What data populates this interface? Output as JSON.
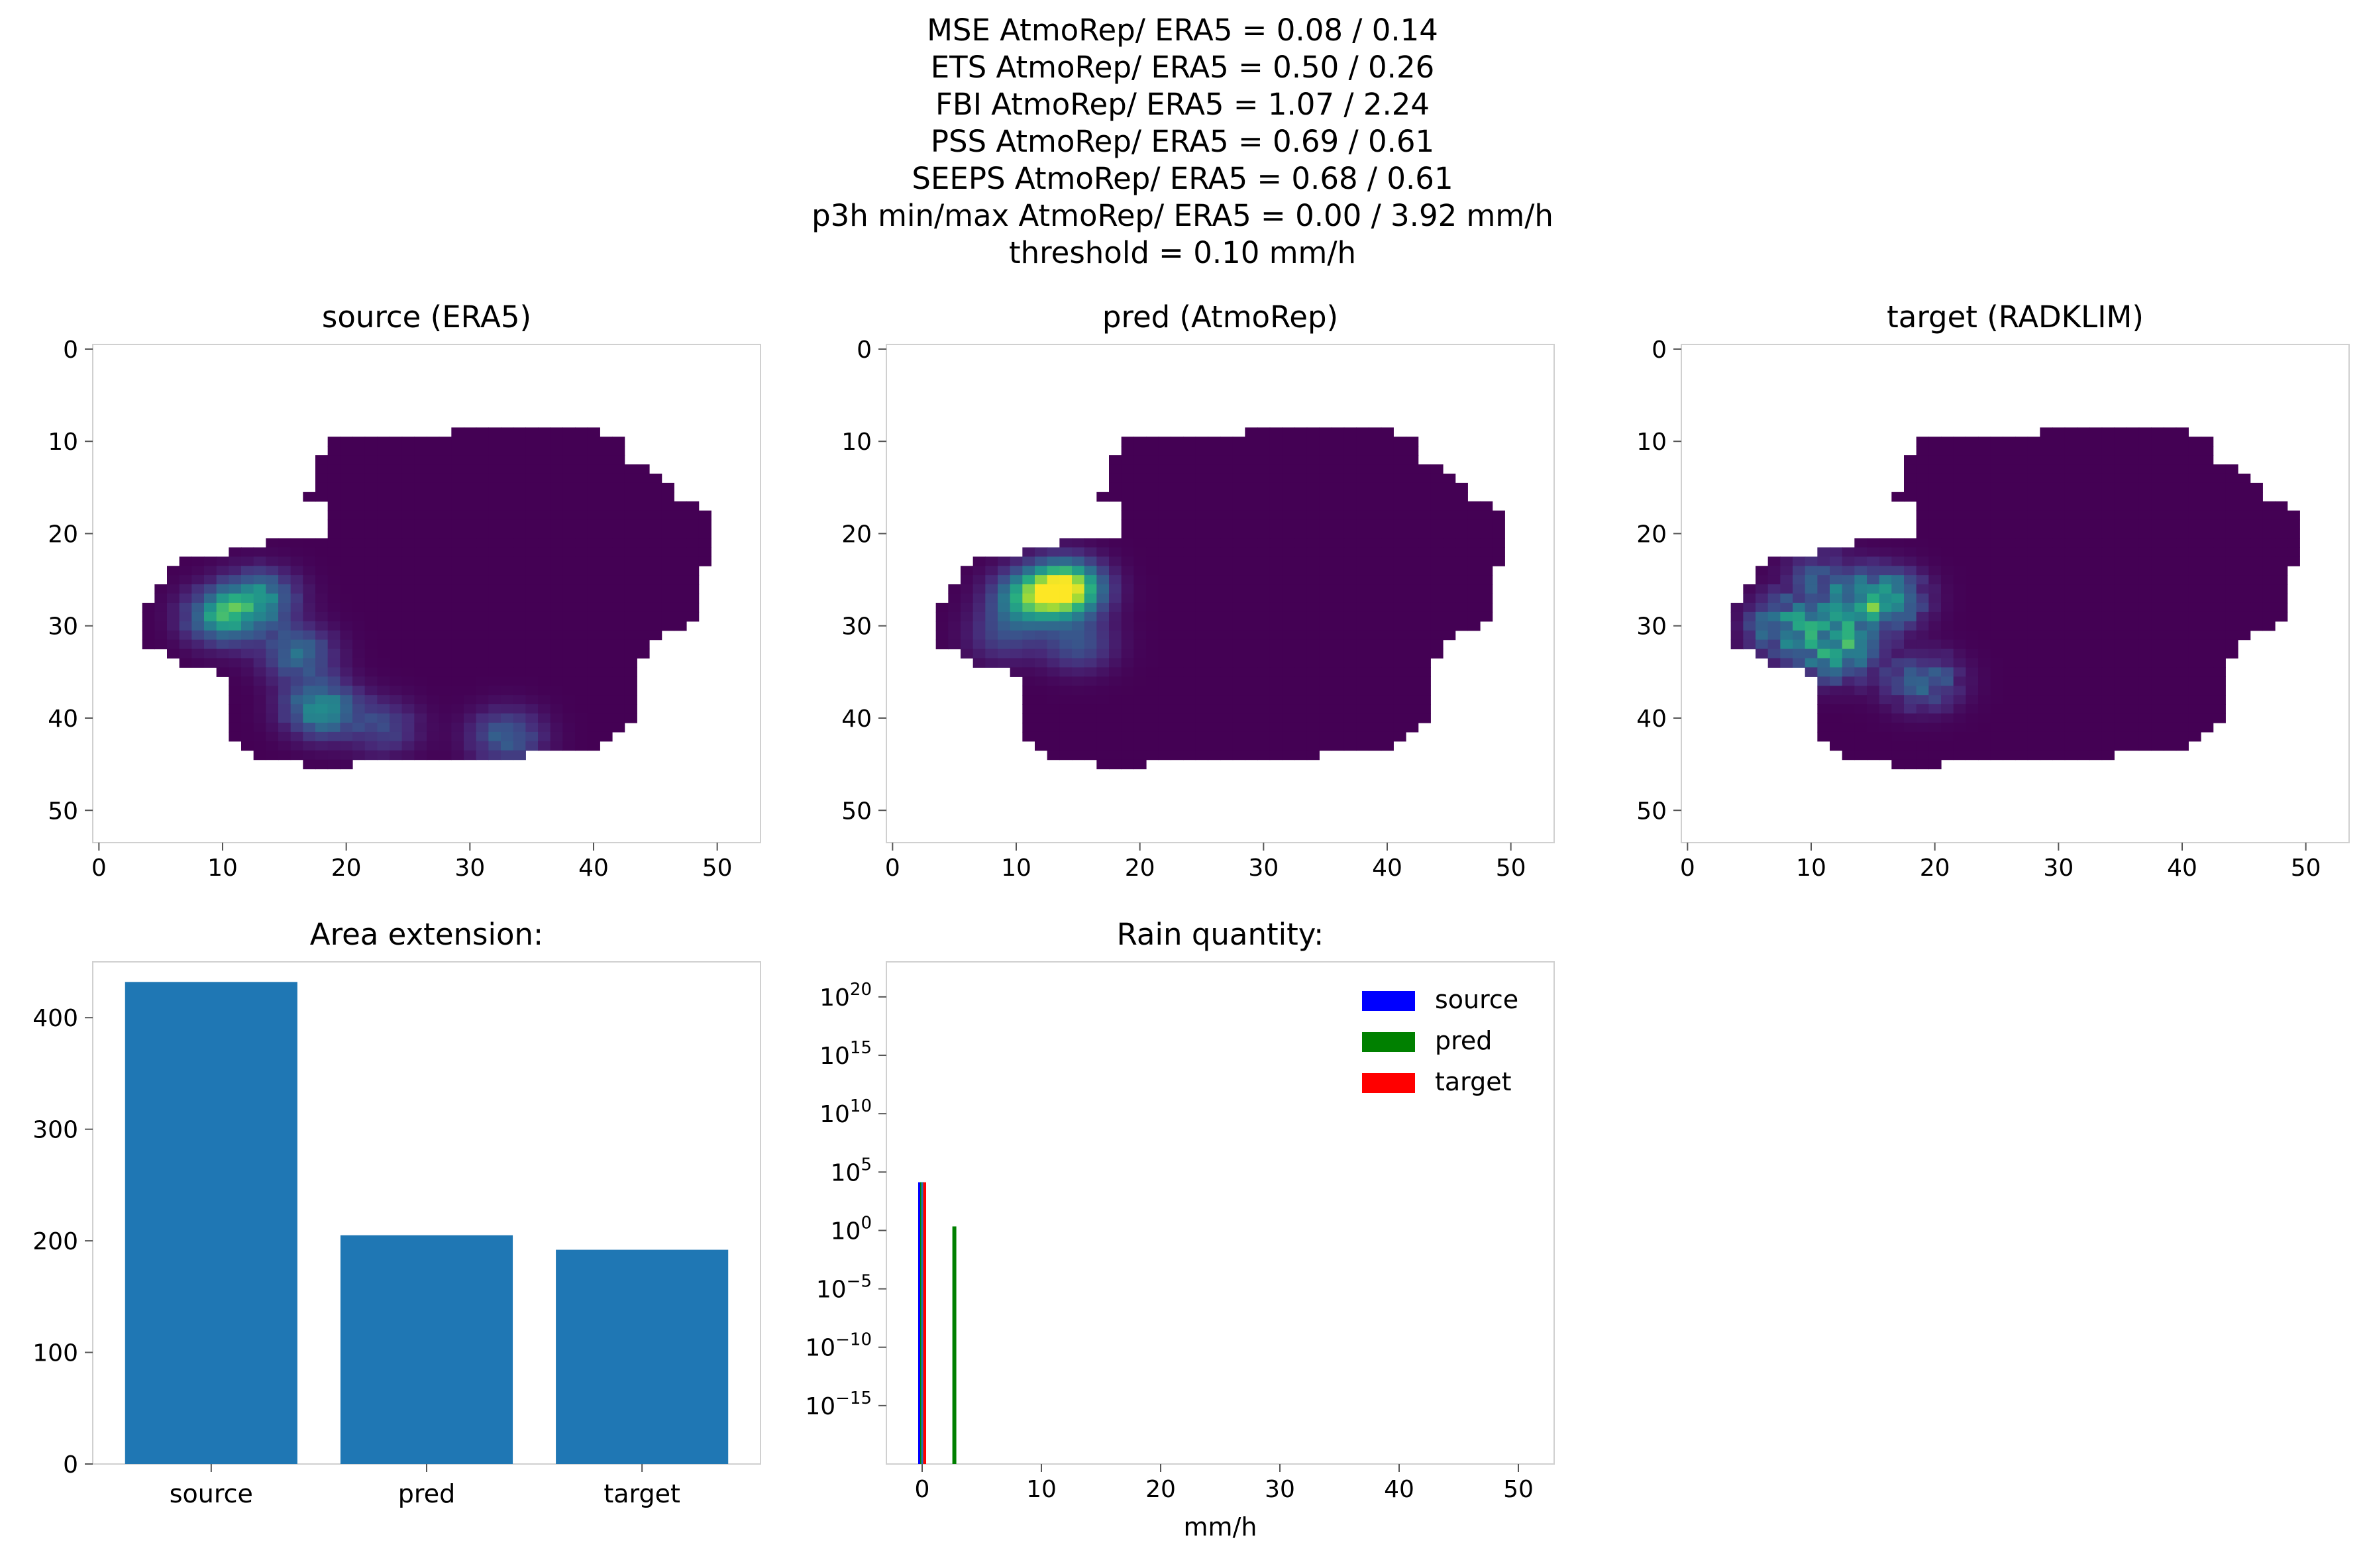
{
  "figure": {
    "suptitle_lines": [
      "MSE AtmoRep/ ERA5 = 0.08 / 0.14",
      "ETS AtmoRep/ ERA5 = 0.50 / 0.26",
      "FBI AtmoRep/ ERA5 = 1.07 / 2.24",
      "PSS AtmoRep/ ERA5 = 0.69 / 0.61",
      "SEEPS AtmoRep/ ERA5 = 0.68 / 0.61",
      "p3h min/max AtmoRep/ ERA5 = 0.00 / 3.92 mm/h",
      "threshold = 0.10 mm/h"
    ]
  },
  "chart_data": [
    {
      "type": "heatmap",
      "title": "source (ERA5)",
      "xlim": [
        -0.5,
        53.5
      ],
      "ylim": [
        53.5,
        -0.5
      ],
      "xticks": [
        0,
        10,
        20,
        30,
        40,
        50
      ],
      "yticks": [
        0,
        10,
        20,
        30,
        40,
        50
      ],
      "colormap": "viridis",
      "hotspots": [
        {
          "x": 10,
          "y": 29,
          "intensity": 0.55
        },
        {
          "x": 13,
          "y": 27,
          "intensity": 0.45
        },
        {
          "x": 16,
          "y": 33,
          "intensity": 0.35
        },
        {
          "x": 18,
          "y": 39,
          "intensity": 0.5
        },
        {
          "x": 33,
          "y": 42,
          "intensity": 0.3
        },
        {
          "x": 23,
          "y": 41,
          "intensity": 0.2
        }
      ]
    },
    {
      "type": "heatmap",
      "title": "pred (AtmoRep)",
      "xlim": [
        -0.5,
        53.5
      ],
      "ylim": [
        53.5,
        -0.5
      ],
      "xticks": [
        0,
        10,
        20,
        30,
        40,
        50
      ],
      "yticks": [
        0,
        10,
        20,
        30,
        40,
        50
      ],
      "colormap": "viridis",
      "hotspots": [
        {
          "x": 14,
          "y": 26,
          "intensity": 1.0
        },
        {
          "x": 11,
          "y": 27,
          "intensity": 0.55
        },
        {
          "x": 15,
          "y": 32,
          "intensity": 0.25
        },
        {
          "x": 9,
          "y": 31,
          "intensity": 0.2
        }
      ]
    },
    {
      "type": "heatmap",
      "title": "target (RADKLIM)",
      "xlim": [
        -0.5,
        53.5
      ],
      "ylim": [
        53.5,
        -0.5
      ],
      "xticks": [
        0,
        10,
        20,
        30,
        40,
        50
      ],
      "yticks": [
        0,
        10,
        20,
        30,
        40,
        50
      ],
      "colormap": "viridis",
      "hotspots": [
        {
          "x": 16,
          "y": 27,
          "intensity": 0.55
        },
        {
          "x": 8,
          "y": 30,
          "intensity": 0.5
        },
        {
          "x": 12,
          "y": 33,
          "intensity": 0.55
        },
        {
          "x": 13,
          "y": 29,
          "intensity": 0.35
        },
        {
          "x": 19,
          "y": 36,
          "intensity": 0.35
        },
        {
          "x": 11,
          "y": 25,
          "intensity": 0.25
        }
      ]
    },
    {
      "type": "bar",
      "title": "Area extension:",
      "categories": [
        "source",
        "pred",
        "target"
      ],
      "values": [
        432,
        205,
        192
      ],
      "ylim": [
        0,
        450
      ],
      "yticks": [
        0,
        100,
        200,
        300,
        400
      ],
      "color": "#1f77b4"
    },
    {
      "type": "bar",
      "title": "Rain quantity:",
      "xlabel": "mm/h",
      "y_scale": "log",
      "xlim": [
        -3,
        53
      ],
      "ylim_exp": [
        -20,
        23
      ],
      "xticks": [
        0,
        10,
        20,
        30,
        40,
        50
      ],
      "ytick_exponents": [
        20,
        15,
        10,
        5,
        0,
        -5,
        -10,
        -15
      ],
      "series": [
        {
          "name": "source",
          "color": "#0000ff",
          "bins": [
            {
              "x": 0.0,
              "value": 13400
            }
          ]
        },
        {
          "name": "pred",
          "color": "#008000",
          "bins": [
            {
              "x": 0.0,
              "value": 13400
            },
            {
              "x": 2.7,
              "value": 2.2
            }
          ]
        },
        {
          "name": "target",
          "color": "#ff0000",
          "bins": [
            {
              "x": 0.0,
              "value": 13400
            }
          ]
        }
      ],
      "overlay_color": "#1f77b4",
      "legend": {
        "location": "upper right"
      }
    }
  ]
}
